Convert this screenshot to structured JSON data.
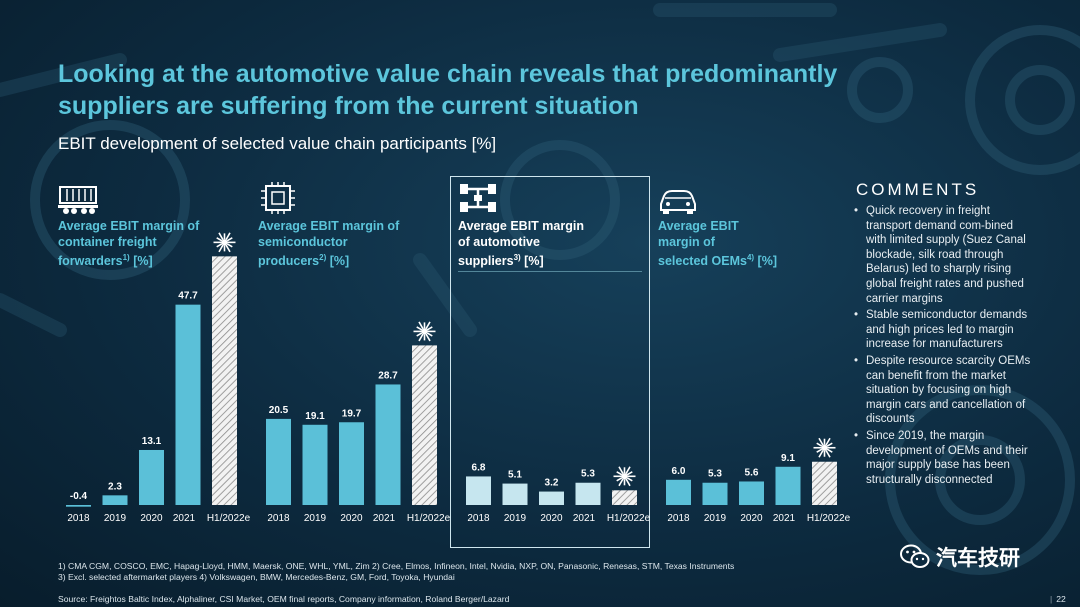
{
  "title": "Looking at the automotive value chain reveals that predominantly suppliers are suffering from the current situation",
  "subtitle": "EBIT development of selected value chain participants [%]",
  "panels": [
    {
      "line1": "Average EBIT margin of",
      "line2": "container freight",
      "line3": "forwarders",
      "sup": "1)",
      "unit": " [%]",
      "icon": "container-train-icon"
    },
    {
      "line1": "Average EBIT margin of",
      "line2": "semiconductor",
      "line3": "producers",
      "sup": "2)",
      "unit": " [%]",
      "icon": "chip-icon"
    },
    {
      "line1": "Average EBIT margin",
      "line2": "of automotive",
      "line3": "suppliers",
      "sup": "3)",
      "unit": " [%]",
      "icon": "chassis-icon"
    },
    {
      "line1": "Average EBIT",
      "line2": "margin of",
      "line3": "selected OEMs",
      "sup": "4)",
      "unit": " [%]",
      "icon": "car-icon"
    }
  ],
  "chart_data": [
    {
      "type": "bar",
      "name": "container freight forwarders",
      "categories": [
        "2018",
        "2019",
        "2020",
        "2021",
        "H1/2022e"
      ],
      "values": [
        -0.4,
        2.3,
        13.1,
        47.7,
        59.2
      ],
      "labels": [
        "-0.4",
        "2.3",
        "13.1",
        "47.7",
        ""
      ],
      "estimate_index": 4
    },
    {
      "type": "bar",
      "name": "semiconductor producers",
      "categories": [
        "2018",
        "2019",
        "2020",
        "2021",
        "H1/2022e"
      ],
      "values": [
        20.5,
        19.1,
        19.7,
        28.7,
        38.0
      ],
      "labels": [
        "20.5",
        "19.1",
        "19.7",
        "28.7",
        ""
      ],
      "estimate_index": 4
    },
    {
      "type": "bar",
      "name": "automotive suppliers",
      "categories": [
        "2018",
        "2019",
        "2020",
        "2021",
        "H1/2022e"
      ],
      "values": [
        6.8,
        5.1,
        3.2,
        5.3,
        3.5
      ],
      "labels": [
        "6.8",
        "5.1",
        "3.2",
        "5.3",
        ""
      ],
      "estimate_index": 4
    },
    {
      "type": "bar",
      "name": "selected OEMs",
      "categories": [
        "2018",
        "2019",
        "2020",
        "2021",
        "H1/2022e"
      ],
      "values": [
        6.0,
        5.3,
        5.6,
        9.1,
        10.3
      ],
      "labels": [
        "6.0",
        "5.3",
        "5.6",
        "9.1",
        ""
      ],
      "estimate_index": 4
    }
  ],
  "colors": {
    "accent": "#5cc6dc",
    "bar": "#5bc0d8",
    "bar_highlight": "#c6e6ef",
    "estimate": "#e6e6e6",
    "background": "#0d2b40"
  },
  "comments": {
    "title": "COMMENTS",
    "items": [
      "Quick recovery in freight transport demand com-bined with limited supply (Suez Canal blockade, silk road through Belarus) led to sharply rising global freight rates and pushed carrier margins",
      "Stable semiconductor demands and high prices led to margin increase for manufacturers",
      "Despite resource scarcity OEMs can benefit from the market situation by focusing on high margin cars and cancellation of discounts",
      "Since 2019, the margin development of OEMs and their major supply base has been structurally disconnected"
    ]
  },
  "footnotes": {
    "line1": "1) CMA CGM, COSCO, EMC, Hapag-Lloyd, HMM, Maersk, ONE, WHL, YML, Zim 2) Cree, Elmos, Infineon, Intel, Nvidia, NXP, ON, Panasonic, Renesas, STM, Texas Instruments",
    "line2": "3) Excl. selected aftermarket players 4) Volkswagen, BMW, Mercedes-Benz, GM, Ford, Toyoka, Hyundai"
  },
  "source": "Source: Freightos Baltic Index, Alphaliner, CSI Market, OEM final reports, Company information, Roland Berger/Lazard",
  "page_number": "22",
  "watermark": "汽车技研"
}
